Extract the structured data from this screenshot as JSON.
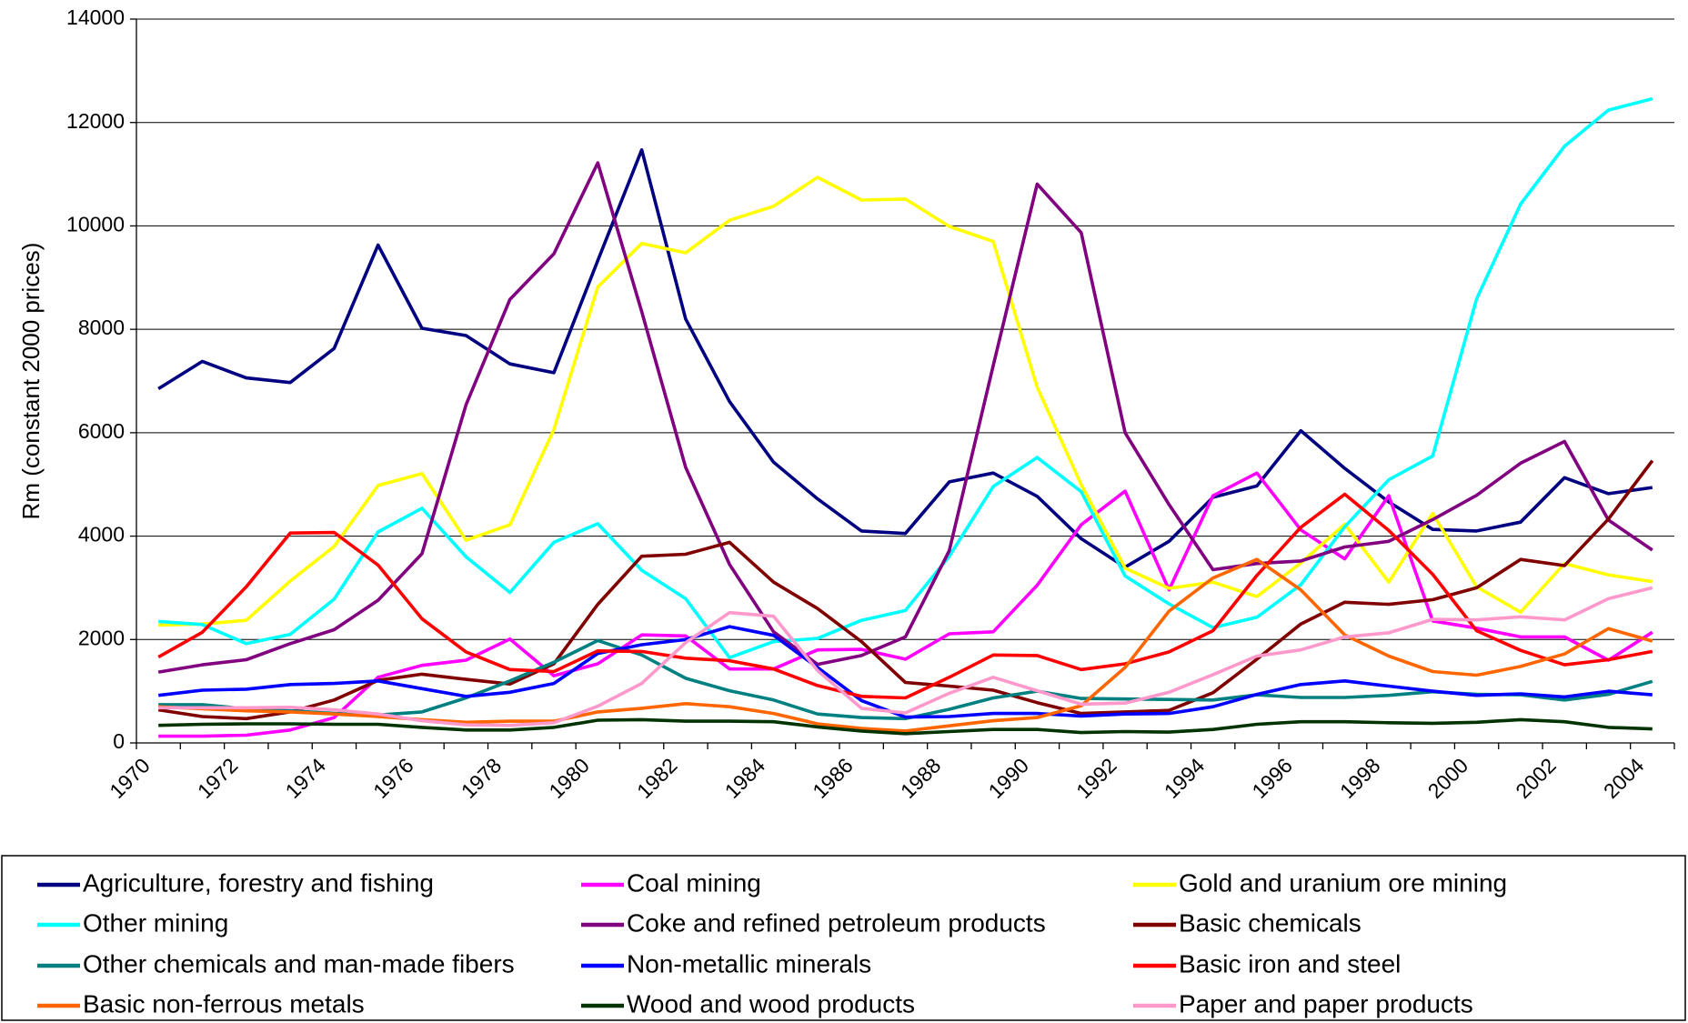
{
  "chart_data": {
    "type": "line",
    "y_label": "Rm (constant 2000 prices)",
    "categories": [
      "1970",
      null,
      "1972",
      null,
      "1974",
      null,
      "1976",
      null,
      "1978",
      null,
      "1980",
      null,
      "1982",
      null,
      "1984",
      null,
      "1986",
      null,
      "1988",
      null,
      "1990",
      null,
      "1992",
      null,
      "1994",
      null,
      "1996",
      null,
      "1998",
      null,
      "2000",
      null,
      "2002",
      null,
      "2004"
    ],
    "ylim": [
      0,
      14000
    ],
    "yticks": [
      0,
      2000,
      4000,
      6000,
      8000,
      10000,
      12000,
      14000
    ],
    "grid": true,
    "series": [
      {
        "name": "Agriculture, forestry and fishing",
        "color": "#000080",
        "values": [
          6850,
          7380,
          7060,
          6970,
          7630,
          9630,
          8020,
          7880,
          7330,
          7160,
          9330,
          11470,
          8200,
          6600,
          5430,
          4720,
          4100,
          4050,
          5050,
          5220,
          4770,
          3950,
          3400,
          3900,
          4750,
          4970,
          6040,
          5310,
          4660,
          4130,
          4100,
          4270,
          5130,
          4820,
          4940
        ]
      },
      {
        "name": "Coal mining",
        "color": "#ff00ff",
        "values": [
          130,
          130,
          150,
          250,
          490,
          1270,
          1500,
          1600,
          2010,
          1300,
          1530,
          2090,
          2070,
          1430,
          1430,
          1800,
          1810,
          1620,
          2110,
          2150,
          3050,
          4220,
          4870,
          2960,
          4780,
          5220,
          4120,
          3560,
          4780,
          2360,
          2220,
          2050,
          2050,
          1600,
          2140
        ]
      },
      {
        "name": "Gold and uranium ore mining",
        "color": "#ffff00",
        "values": [
          2280,
          2300,
          2370,
          3130,
          3800,
          4980,
          5210,
          3920,
          4220,
          6060,
          8820,
          9660,
          9480,
          10110,
          10380,
          10940,
          10500,
          10520,
          9990,
          9700,
          6880,
          5000,
          3380,
          2990,
          3110,
          2830,
          3480,
          4230,
          3110,
          4440,
          3020,
          2530,
          3470,
          3250,
          3120
        ]
      },
      {
        "name": "Other mining",
        "color": "#00ffff",
        "values": [
          2350,
          2290,
          1920,
          2100,
          2780,
          4080,
          4540,
          3600,
          2910,
          3880,
          4240,
          3340,
          2790,
          1650,
          1960,
          2020,
          2370,
          2560,
          3610,
          4960,
          5520,
          4860,
          3230,
          2690,
          2230,
          2430,
          3060,
          4180,
          5090,
          5550,
          8590,
          10420,
          11540,
          12240,
          12460
        ]
      },
      {
        "name": "Coke and refined petroleum products",
        "color": "#800080",
        "values": [
          1370,
          1510,
          1610,
          1920,
          2190,
          2760,
          3660,
          6540,
          8580,
          9460,
          11220,
          8340,
          5330,
          3450,
          2150,
          1520,
          1690,
          2050,
          3720,
          7300,
          10810,
          9870,
          6000,
          4610,
          3350,
          3470,
          3520,
          3790,
          3900,
          4320,
          4790,
          5410,
          5830,
          4310,
          3730
        ]
      },
      {
        "name": "Basic chemicals",
        "color": "#800000",
        "values": [
          640,
          510,
          470,
          600,
          830,
          1210,
          1330,
          1230,
          1140,
          1530,
          2680,
          3610,
          3650,
          3880,
          3110,
          2600,
          1960,
          1170,
          1100,
          1020,
          780,
          570,
          600,
          630,
          970,
          1620,
          2300,
          2720,
          2680,
          2770,
          3000,
          3550,
          3430,
          4330,
          5460
        ]
      },
      {
        "name": "Other chemicals and man-made fibers",
        "color": "#008080",
        "values": [
          740,
          740,
          660,
          620,
          570,
          540,
          600,
          870,
          1200,
          1560,
          1980,
          1700,
          1250,
          1010,
          830,
          560,
          490,
          470,
          650,
          870,
          1000,
          860,
          850,
          840,
          830,
          930,
          880,
          880,
          920,
          990,
          940,
          930,
          830,
          940,
          1190
        ]
      },
      {
        "name": "Non-metallic minerals",
        "color": "#0000ff",
        "values": [
          920,
          1020,
          1040,
          1130,
          1150,
          1200,
          1050,
          900,
          980,
          1150,
          1730,
          1900,
          2000,
          2250,
          2080,
          1460,
          820,
          500,
          510,
          570,
          570,
          520,
          560,
          570,
          700,
          940,
          1130,
          1200,
          1100,
          1000,
          920,
          950,
          890,
          1000,
          930
        ]
      },
      {
        "name": "Basic iron and steel",
        "color": "#ff0000",
        "values": [
          1660,
          2140,
          3020,
          4060,
          4070,
          3440,
          2400,
          1760,
          1420,
          1380,
          1780,
          1770,
          1640,
          1590,
          1430,
          1110,
          900,
          870,
          1270,
          1700,
          1690,
          1420,
          1530,
          1760,
          2170,
          3240,
          4170,
          4810,
          4110,
          3260,
          2170,
          1790,
          1510,
          1610,
          1770
        ]
      },
      {
        "name": "Basic non-ferrous metals",
        "color": "#ff6600",
        "values": [
          700,
          660,
          620,
          600,
          560,
          510,
          450,
          400,
          420,
          420,
          600,
          670,
          760,
          700,
          570,
          370,
          280,
          230,
          330,
          430,
          490,
          720,
          1460,
          2550,
          3190,
          3550,
          2960,
          2090,
          1680,
          1380,
          1310,
          1480,
          1720,
          2210,
          1970
        ]
      },
      {
        "name": "Wood and wood products",
        "color": "#003300",
        "values": [
          340,
          360,
          370,
          370,
          360,
          360,
          300,
          250,
          250,
          300,
          440,
          450,
          420,
          420,
          410,
          310,
          230,
          180,
          220,
          260,
          260,
          200,
          220,
          210,
          260,
          360,
          410,
          410,
          390,
          380,
          400,
          450,
          410,
          300,
          270
        ]
      },
      {
        "name": "Paper and paper products",
        "color": "#ff99cc",
        "values": [
          680,
          680,
          680,
          690,
          640,
          560,
          430,
          350,
          340,
          390,
          710,
          1150,
          1940,
          2520,
          2450,
          1400,
          670,
          580,
          960,
          1270,
          1010,
          750,
          770,
          980,
          1320,
          1680,
          1800,
          2050,
          2130,
          2390,
          2380,
          2440,
          2380,
          2790,
          3000
        ]
      }
    ]
  }
}
